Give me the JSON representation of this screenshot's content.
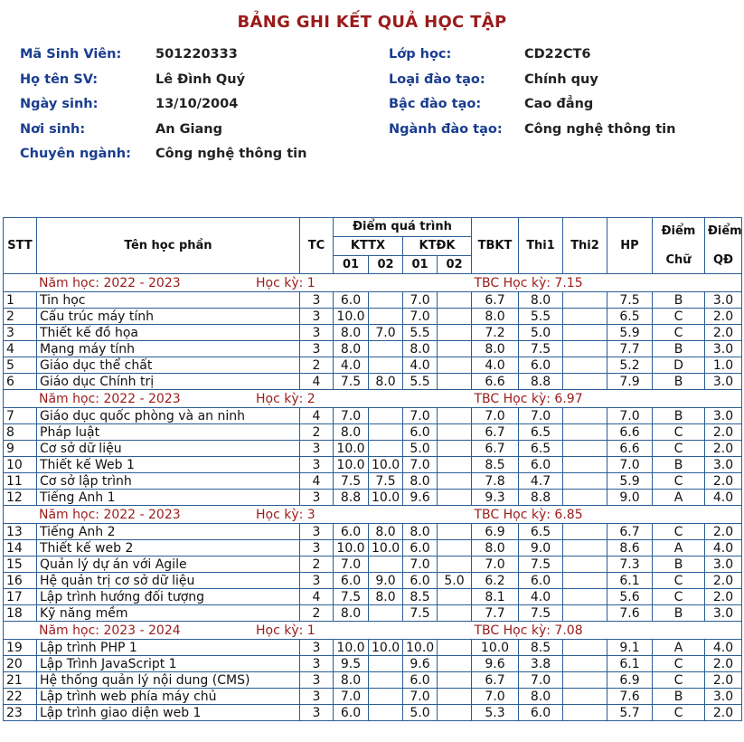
{
  "title": "BẢNG GHI KẾT QUẢ HỌC TẬP",
  "info": [
    {
      "l1": "Mã Sinh Viên:",
      "v1": "501220333",
      "l2": "Lớp học:",
      "v2": "CD22CT6"
    },
    {
      "l1": "Họ tên SV:",
      "v1": "Lê Đình Quý",
      "l2": "Loại đào tạo:",
      "v2": "Chính quy"
    },
    {
      "l1": "Ngày sinh:",
      "v1": "13/10/2004",
      "l2": "Bậc đào tạo:",
      "v2": "Cao đẳng"
    },
    {
      "l1": "Nơi sinh:",
      "v1": "An Giang",
      "l2": "Ngành đào tạo:",
      "v2": "Công nghệ thông tin"
    },
    {
      "l1": "Chuyên ngành:",
      "v1": "Công nghệ thông tin",
      "l2": "",
      "v2": ""
    }
  ],
  "headers": {
    "stt": "STT",
    "name": "Tên học phần",
    "tc": "TC",
    "process": "Điểm quá trình",
    "kttx": "KTTX",
    "ktdk": "KTĐK",
    "sub": [
      "01",
      "02",
      "01",
      "02"
    ],
    "tbkt": "TBKT",
    "thi1": "Thi1",
    "thi2": "Thi2",
    "hp": "HP",
    "diemchu1": "Điểm",
    "diemchu2": "Chữ",
    "diemqd1": "Điểm",
    "diemqd2": "QĐ"
  },
  "semesters": [
    {
      "year": "Năm học: 2022 - 2023",
      "term": "Học kỳ: 1",
      "tbc": "TBC Học kỳ: 7.15",
      "rows": [
        [
          "1",
          "Tin học",
          "3",
          "6.0",
          "",
          "7.0",
          "",
          "6.7",
          "8.0",
          "",
          "7.5",
          "B",
          "3.0"
        ],
        [
          "2",
          "Cấu trúc máy tính",
          "3",
          "10.0",
          "",
          "7.0",
          "",
          "8.0",
          "5.5",
          "",
          "6.5",
          "C",
          "2.0"
        ],
        [
          "3",
          "Thiết kế đồ họa",
          "3",
          "8.0",
          "7.0",
          "5.5",
          "",
          "7.2",
          "5.0",
          "",
          "5.9",
          "C",
          "2.0"
        ],
        [
          "4",
          "Mạng máy tính",
          "3",
          "8.0",
          "",
          "8.0",
          "",
          "8.0",
          "7.5",
          "",
          "7.7",
          "B",
          "3.0"
        ],
        [
          "5",
          "Giáo dục thể chất",
          "2",
          "4.0",
          "",
          "4.0",
          "",
          "4.0",
          "6.0",
          "",
          "5.2",
          "D",
          "1.0"
        ],
        [
          "6",
          "Giáo dục Chính trị",
          "4",
          "7.5",
          "8.0",
          "5.5",
          "",
          "6.6",
          "8.8",
          "",
          "7.9",
          "B",
          "3.0"
        ]
      ]
    },
    {
      "year": "Năm học: 2022 - 2023",
      "term": "Học kỳ: 2",
      "tbc": "TBC Học kỳ: 6.97",
      "rows": [
        [
          "7",
          "Giáo dục quốc phòng và an ninh",
          "4",
          "7.0",
          "",
          "7.0",
          "",
          "7.0",
          "7.0",
          "",
          "7.0",
          "B",
          "3.0"
        ],
        [
          "8",
          "Pháp luật",
          "2",
          "8.0",
          "",
          "6.0",
          "",
          "6.7",
          "6.5",
          "",
          "6.6",
          "C",
          "2.0"
        ],
        [
          "9",
          "Cơ sở dữ liệu",
          "3",
          "10.0",
          "",
          "5.0",
          "",
          "6.7",
          "6.5",
          "",
          "6.6",
          "C",
          "2.0"
        ],
        [
          "10",
          "Thiết kế Web 1",
          "3",
          "10.0",
          "10.0",
          "7.0",
          "",
          "8.5",
          "6.0",
          "",
          "7.0",
          "B",
          "3.0"
        ],
        [
          "11",
          "Cơ sở lập trình",
          "4",
          "7.5",
          "7.5",
          "8.0",
          "",
          "7.8",
          "4.7",
          "",
          "5.9",
          "C",
          "2.0"
        ],
        [
          "12",
          "Tiếng Anh 1",
          "3",
          "8.8",
          "10.0",
          "9.6",
          "",
          "9.3",
          "8.8",
          "",
          "9.0",
          "A",
          "4.0"
        ]
      ]
    },
    {
      "year": "Năm học: 2022 - 2023",
      "term": "Học kỳ: 3",
      "tbc": "TBC Học kỳ: 6.85",
      "rows": [
        [
          "13",
          "Tiếng Anh 2",
          "3",
          "6.0",
          "8.0",
          "8.0",
          "",
          "6.9",
          "6.5",
          "",
          "6.7",
          "C",
          "2.0"
        ],
        [
          "14",
          "Thiết kế web 2",
          "3",
          "10.0",
          "10.0",
          "6.0",
          "",
          "8.0",
          "9.0",
          "",
          "8.6",
          "A",
          "4.0"
        ],
        [
          "15",
          "Quản lý dự án với Agile",
          "2",
          "7.0",
          "",
          "7.0",
          "",
          "7.0",
          "7.5",
          "",
          "7.3",
          "B",
          "3.0"
        ],
        [
          "16",
          "Hệ quản trị cơ sở dữ liệu",
          "3",
          "6.0",
          "9.0",
          "6.0",
          "5.0",
          "6.2",
          "6.0",
          "",
          "6.1",
          "C",
          "2.0"
        ],
        [
          "17",
          "Lập trình hướng đối tượng",
          "4",
          "7.5",
          "8.0",
          "8.5",
          "",
          "8.1",
          "4.0",
          "",
          "5.6",
          "C",
          "2.0"
        ],
        [
          "18",
          "Kỹ năng mềm",
          "2",
          "8.0",
          "",
          "7.5",
          "",
          "7.7",
          "7.5",
          "",
          "7.6",
          "B",
          "3.0"
        ]
      ]
    },
    {
      "year": "Năm học: 2023 - 2024",
      "term": "Học kỳ: 1",
      "tbc": "TBC Học kỳ: 7.08",
      "rows": [
        [
          "19",
          "Lập trình PHP 1",
          "3",
          "10.0",
          "10.0",
          "10.0",
          "",
          "10.0",
          "8.5",
          "",
          "9.1",
          "A",
          "4.0"
        ],
        [
          "20",
          "Lập Trình JavaScript 1",
          "3",
          "9.5",
          "",
          "9.6",
          "",
          "9.6",
          "3.8",
          "",
          "6.1",
          "C",
          "2.0"
        ],
        [
          "21",
          "Hệ thống quản lý nội dung (CMS)",
          "3",
          "8.0",
          "",
          "6.0",
          "",
          "6.7",
          "7.0",
          "",
          "6.9",
          "C",
          "2.0"
        ],
        [
          "22",
          "Lập trình web phía máy chủ",
          "3",
          "7.0",
          "",
          "7.0",
          "",
          "7.0",
          "8.0",
          "",
          "7.6",
          "B",
          "3.0"
        ],
        [
          "23",
          "Lập trình giao diện web 1",
          "3",
          "6.0",
          "",
          "5.0",
          "",
          "5.3",
          "6.0",
          "",
          "5.7",
          "C",
          "2.0"
        ]
      ]
    }
  ]
}
